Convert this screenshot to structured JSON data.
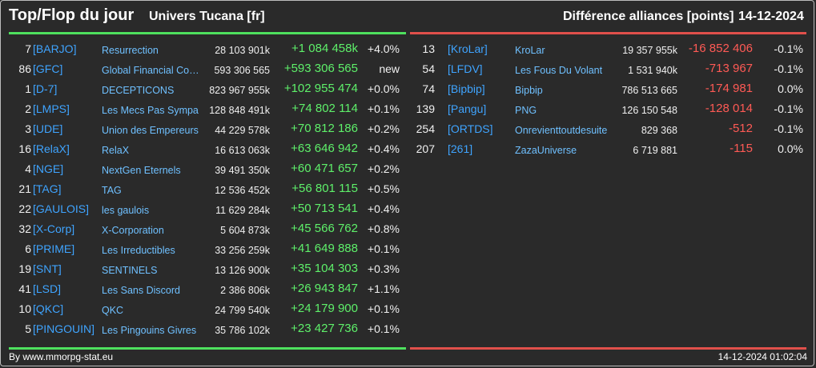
{
  "header": {
    "title": "Top/Flop du jour",
    "universe": "Univers Tucana [fr]",
    "subtitle": "Différence alliances [points]",
    "date": "14-12-2024"
  },
  "colors": {
    "positive": "#5ef06a",
    "negative": "#ff5a55",
    "tag": "#3fa4ff",
    "name": "#6fc0ff",
    "top_bar": "#4ee05e",
    "flop_bar": "#e0504b"
  },
  "top": [
    {
      "rank": "7",
      "tag": "[BARJO]",
      "name": "Resurrection",
      "points": "28 103 901k",
      "diff": "+1 084 458k",
      "pct": "+4.0%"
    },
    {
      "rank": "86",
      "tag": "[GFC]",
      "name": "Global Financial Coa…",
      "points": "593 306 565",
      "diff": "+593 306 565",
      "pct": "new"
    },
    {
      "rank": "1",
      "tag": "[D-7]",
      "name": "DECEPTICONS",
      "points": "823 967 955k",
      "diff": "+102 955 474",
      "pct": "+0.0%"
    },
    {
      "rank": "2",
      "tag": "[LMPS]",
      "name": "Les Mecs Pas Sympa",
      "points": "128 848 491k",
      "diff": "+74 802 114",
      "pct": "+0.1%"
    },
    {
      "rank": "3",
      "tag": "[UDE]",
      "name": "Union des Empereurs",
      "points": "44 229 578k",
      "diff": "+70 812 186",
      "pct": "+0.2%"
    },
    {
      "rank": "16",
      "tag": "[RelaX]",
      "name": "RelaX",
      "points": "16 613 063k",
      "diff": "+63 646 942",
      "pct": "+0.4%"
    },
    {
      "rank": "4",
      "tag": "[NGE]",
      "name": "NextGen Eternels",
      "points": "39 491 350k",
      "diff": "+60 471 657",
      "pct": "+0.2%"
    },
    {
      "rank": "21",
      "tag": "[TAG]",
      "name": "TAG",
      "points": "12 536 452k",
      "diff": "+56 801 115",
      "pct": "+0.5%"
    },
    {
      "rank": "22",
      "tag": "[GAULOIS]",
      "name": "les gaulois",
      "points": "11 629 284k",
      "diff": "+50 713 541",
      "pct": "+0.4%"
    },
    {
      "rank": "32",
      "tag": "[X-Corp]",
      "name": "X-Corporation",
      "points": "5 604 873k",
      "diff": "+45 566 762",
      "pct": "+0.8%"
    },
    {
      "rank": "6",
      "tag": "[PRIME]",
      "name": "Les Irreductibles",
      "points": "33 256 259k",
      "diff": "+41 649 888",
      "pct": "+0.1%"
    },
    {
      "rank": "19",
      "tag": "[SNT]",
      "name": "SENTINELS",
      "points": "13 126 900k",
      "diff": "+35 104 303",
      "pct": "+0.3%"
    },
    {
      "rank": "41",
      "tag": "[LSD]",
      "name": "Les Sans Discord",
      "points": "2 386 806k",
      "diff": "+26 943 847",
      "pct": "+1.1%"
    },
    {
      "rank": "10",
      "tag": "[QKC]",
      "name": "QKC",
      "points": "24 799 540k",
      "diff": "+24 179 900",
      "pct": "+0.1%"
    },
    {
      "rank": "5",
      "tag": "[PINGOUIN]",
      "name": "Les Pingouins Givres",
      "points": "35 786 102k",
      "diff": "+23 427 736",
      "pct": "+0.1%"
    }
  ],
  "flop": [
    {
      "rank": "13",
      "tag": "[KroLar]",
      "name": "KroLar",
      "points": "19 357 955k",
      "diff": "-16 852 406",
      "pct": "-0.1%"
    },
    {
      "rank": "54",
      "tag": "[LFDV]",
      "name": "Les Fous Du Volant",
      "points": "1 531 940k",
      "diff": "-713 967",
      "pct": "-0.1%"
    },
    {
      "rank": "74",
      "tag": "[Bipbip]",
      "name": "Bipbip",
      "points": "786 513 665",
      "diff": "-174 981",
      "pct": "0.0%"
    },
    {
      "rank": "139",
      "tag": "[Pangu]",
      "name": "PNG",
      "points": "126 150 548",
      "diff": "-128 014",
      "pct": "-0.1%"
    },
    {
      "rank": "254",
      "tag": "[ORTDS]",
      "name": "Onrevienttoutdesuite",
      "points": "829 368",
      "diff": "-512",
      "pct": "-0.1%"
    },
    {
      "rank": "207",
      "tag": "[261]",
      "name": "ZazaUniverse",
      "points": "6 719 881",
      "diff": "-115",
      "pct": "0.0%"
    }
  ],
  "footer": {
    "source": "By www.mmorpg-stat.eu",
    "timestamp": "14-12-2024 01:02:04"
  }
}
